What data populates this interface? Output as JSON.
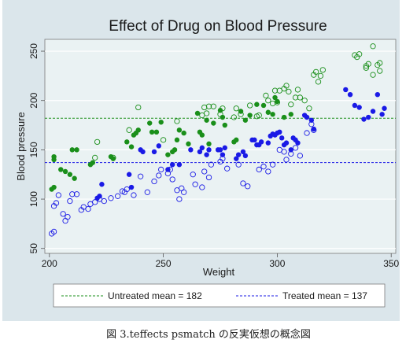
{
  "chart_data": {
    "type": "scatter",
    "title": "Effect of Drug on Blood Pressure",
    "xlabel": "Weight",
    "ylabel": "Blood pressure",
    "xlim": [
      198,
      352
    ],
    "ylim": [
      45,
      262
    ],
    "xticks": [
      200,
      250,
      300,
      350
    ],
    "yticks": [
      50,
      100,
      150,
      200,
      250
    ],
    "grid": "horizontal",
    "legend_position": "bottom",
    "colors": {
      "untreated": "#1a8f1a",
      "treated": "#1a1ae6",
      "plot_bg": "#eaf2f3",
      "frame_bg": "#dbe6eb"
    },
    "reference_lines": [
      {
        "label": "Untreated mean = 182",
        "value": 182,
        "color": "#1a8f1a"
      },
      {
        "label": "Treated mean = 137",
        "value": 137,
        "color": "#1a1ae6"
      }
    ],
    "series": [
      {
        "group": "untreated",
        "marker": "filled",
        "color": "#1a8f1a",
        "points": [
          [
            201,
            110
          ],
          [
            202,
            112
          ],
          [
            202,
            140
          ],
          [
            202,
            143
          ],
          [
            205,
            130
          ],
          [
            207,
            128
          ],
          [
            209,
            125
          ],
          [
            210,
            150
          ],
          [
            211,
            121
          ],
          [
            212,
            150
          ],
          [
            218,
            135
          ],
          [
            219,
            137
          ],
          [
            227,
            143
          ],
          [
            228,
            141
          ],
          [
            234,
            158
          ],
          [
            236,
            153
          ],
          [
            237,
            165
          ],
          [
            238,
            167
          ],
          [
            239,
            170
          ],
          [
            244,
            177
          ],
          [
            245,
            168
          ],
          [
            247,
            168
          ],
          [
            249,
            178
          ],
          [
            252,
            145
          ],
          [
            254,
            148
          ],
          [
            255,
            150
          ],
          [
            256,
            160
          ],
          [
            257,
            170
          ],
          [
            259,
            167
          ],
          [
            261,
            156
          ],
          [
            265,
            187
          ],
          [
            266,
            168
          ],
          [
            267,
            165
          ],
          [
            269,
            180
          ],
          [
            270,
            156
          ],
          [
            272,
            177
          ],
          [
            275,
            190
          ],
          [
            276,
            183
          ],
          [
            277,
            175
          ],
          [
            281,
            158
          ],
          [
            282,
            160
          ],
          [
            284,
            189
          ],
          [
            286,
            180
          ],
          [
            288,
            185
          ],
          [
            291,
            196
          ],
          [
            294,
            195
          ],
          [
            296,
            188
          ],
          [
            298,
            186
          ],
          [
            299,
            203
          ],
          [
            300,
            199
          ],
          [
            303,
            183
          ],
          [
            306,
            186
          ]
        ]
      },
      {
        "group": "untreated",
        "marker": "hollow",
        "color": "#1a8f1a",
        "points": [
          [
            220,
            142
          ],
          [
            221,
            158
          ],
          [
            228,
            142
          ],
          [
            235,
            170
          ],
          [
            239,
            193
          ],
          [
            250,
            160
          ],
          [
            256,
            179
          ],
          [
            267,
            185
          ],
          [
            268,
            193
          ],
          [
            269,
            187
          ],
          [
            270,
            194
          ],
          [
            272,
            194
          ],
          [
            275,
            186
          ],
          [
            276,
            192
          ],
          [
            281,
            183
          ],
          [
            282,
            192
          ],
          [
            284,
            186
          ],
          [
            288,
            195
          ],
          [
            291,
            184
          ],
          [
            292,
            185
          ],
          [
            295,
            205
          ],
          [
            296,
            200
          ],
          [
            298,
            197
          ],
          [
            299,
            210
          ],
          [
            300,
            198
          ],
          [
            301,
            210
          ],
          [
            303,
            212
          ],
          [
            304,
            215
          ],
          [
            305,
            209
          ],
          [
            306,
            196
          ],
          [
            308,
            203
          ],
          [
            309,
            211
          ],
          [
            310,
            203
          ],
          [
            312,
            200
          ],
          [
            314,
            192
          ],
          [
            316,
            226
          ],
          [
            317,
            229
          ],
          [
            318,
            219
          ],
          [
            319,
            225
          ],
          [
            320,
            231
          ],
          [
            334,
            246
          ],
          [
            335,
            244
          ],
          [
            336,
            247
          ],
          [
            339,
            235
          ],
          [
            339,
            233
          ],
          [
            340,
            237
          ],
          [
            342,
            226
          ],
          [
            342,
            255
          ],
          [
            344,
            236
          ],
          [
            345,
            238
          ],
          [
            345,
            230
          ]
        ]
      },
      {
        "group": "treated",
        "marker": "filled",
        "color": "#1a1ae6",
        "points": [
          [
            221,
            101
          ],
          [
            222,
            103
          ],
          [
            223,
            115
          ],
          [
            235,
            125
          ],
          [
            236,
            112
          ],
          [
            240,
            150
          ],
          [
            241,
            148
          ],
          [
            246,
            148
          ],
          [
            248,
            154
          ],
          [
            252,
            130
          ],
          [
            254,
            135
          ],
          [
            257,
            135
          ],
          [
            262,
            150
          ],
          [
            266,
            148
          ],
          [
            267,
            152
          ],
          [
            269,
            145
          ],
          [
            270,
            150
          ],
          [
            274,
            150
          ],
          [
            275,
            150
          ],
          [
            276,
            145
          ],
          [
            277,
            152
          ],
          [
            282,
            141
          ],
          [
            283,
            145
          ],
          [
            285,
            148
          ],
          [
            286,
            144
          ],
          [
            289,
            160
          ],
          [
            290,
            160
          ],
          [
            291,
            155
          ],
          [
            292,
            155
          ],
          [
            293,
            158
          ],
          [
            296,
            157
          ],
          [
            297,
            164
          ],
          [
            298,
            166
          ],
          [
            299,
            165
          ],
          [
            300,
            167
          ],
          [
            301,
            168
          ],
          [
            302,
            162
          ],
          [
            303,
            155
          ],
          [
            304,
            157
          ],
          [
            306,
            150
          ],
          [
            307,
            162
          ],
          [
            308,
            160
          ],
          [
            309,
            157
          ],
          [
            312,
            185
          ],
          [
            313,
            183
          ],
          [
            315,
            180
          ],
          [
            316,
            171
          ],
          [
            330,
            211
          ],
          [
            332,
            206
          ],
          [
            334,
            195
          ],
          [
            336,
            193
          ],
          [
            338,
            181
          ],
          [
            340,
            183
          ],
          [
            342,
            189
          ],
          [
            344,
            206
          ],
          [
            346,
            186
          ],
          [
            347,
            192
          ]
        ]
      },
      {
        "group": "treated",
        "marker": "hollow",
        "color": "#1a1ae6",
        "points": [
          [
            201,
            65
          ],
          [
            202,
            67
          ],
          [
            202,
            93
          ],
          [
            203,
            96
          ],
          [
            204,
            104
          ],
          [
            206,
            85
          ],
          [
            207,
            78
          ],
          [
            208,
            82
          ],
          [
            209,
            98
          ],
          [
            210,
            105
          ],
          [
            212,
            105
          ],
          [
            214,
            89
          ],
          [
            215,
            92
          ],
          [
            217,
            90
          ],
          [
            218,
            95
          ],
          [
            220,
            97
          ],
          [
            222,
            100
          ],
          [
            224,
            98
          ],
          [
            227,
            101
          ],
          [
            230,
            103
          ],
          [
            232,
            108
          ],
          [
            233,
            107
          ],
          [
            234,
            110
          ],
          [
            237,
            104
          ],
          [
            240,
            123
          ],
          [
            243,
            107
          ],
          [
            246,
            118
          ],
          [
            248,
            124
          ],
          [
            249,
            130
          ],
          [
            252,
            126
          ],
          [
            253,
            130
          ],
          [
            254,
            120
          ],
          [
            256,
            109
          ],
          [
            257,
            100
          ],
          [
            258,
            111
          ],
          [
            259,
            107
          ],
          [
            263,
            125
          ],
          [
            264,
            115
          ],
          [
            267,
            112
          ],
          [
            268,
            128
          ],
          [
            270,
            122
          ],
          [
            271,
            135
          ],
          [
            275,
            138
          ],
          [
            276,
            141
          ],
          [
            278,
            131
          ],
          [
            283,
            135
          ],
          [
            285,
            116
          ],
          [
            287,
            113
          ],
          [
            292,
            130
          ],
          [
            294,
            133
          ],
          [
            296,
            128
          ],
          [
            298,
            135
          ],
          [
            301,
            150
          ],
          [
            303,
            148
          ],
          [
            304,
            140
          ],
          [
            306,
            146
          ],
          [
            308,
            152
          ],
          [
            310,
            144
          ],
          [
            313,
            167
          ],
          [
            315,
            176
          ],
          [
            316,
            170
          ]
        ]
      }
    ]
  },
  "caption": "図 3.teffects psmatch の反実仮想の概念図"
}
